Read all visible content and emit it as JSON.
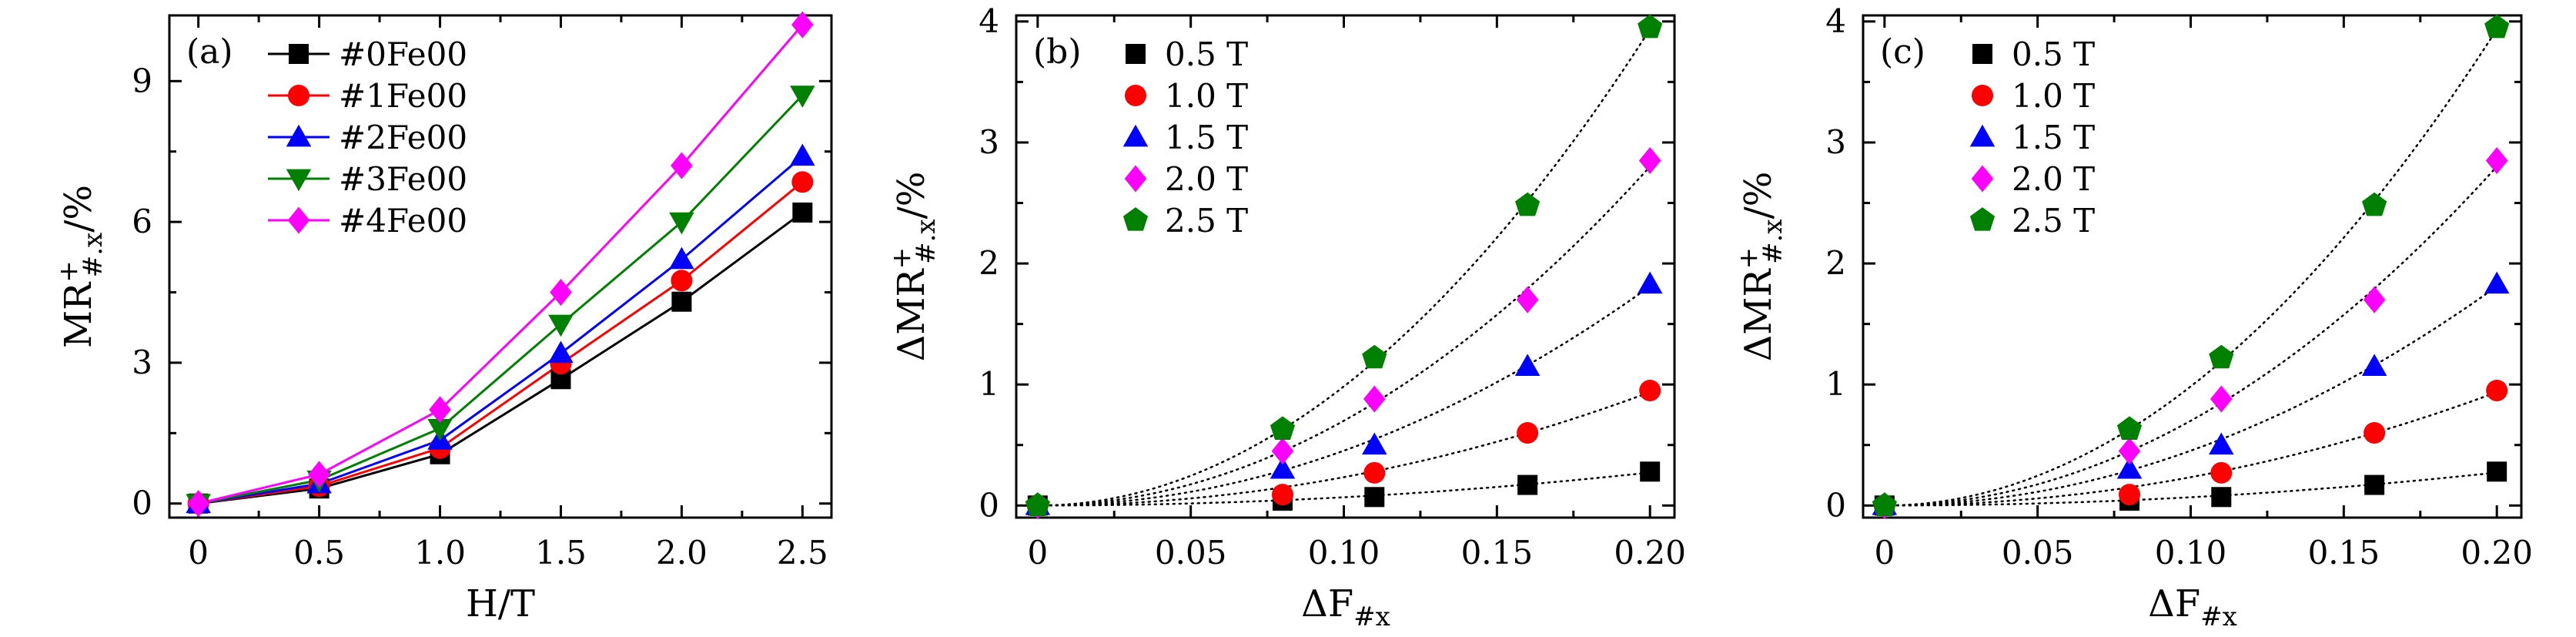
{
  "figure": {
    "panels": [
      "(a)",
      "(b)",
      "(c)"
    ]
  },
  "chart_data": [
    {
      "type": "line",
      "panel_label": "(a)",
      "x": [
        0,
        0.5,
        1.0,
        1.5,
        2.0,
        2.5
      ],
      "series": [
        {
          "name": "#0Fe00",
          "color": "#000000",
          "marker": "square",
          "values": [
            0,
            0.32,
            1.05,
            2.65,
            4.3,
            6.2
          ]
        },
        {
          "name": "#1Fe00",
          "color": "#ff0000",
          "marker": "circle",
          "values": [
            0,
            0.37,
            1.18,
            2.98,
            4.75,
            6.85
          ]
        },
        {
          "name": "#2Fe00",
          "color": "#0000ff",
          "marker": "triangle-up",
          "values": [
            0,
            0.42,
            1.35,
            3.2,
            5.2,
            7.4
          ]
        },
        {
          "name": "#3Fe00",
          "color": "#008000",
          "marker": "triangle-down",
          "values": [
            0,
            0.5,
            1.6,
            3.82,
            6.0,
            8.7
          ]
        },
        {
          "name": "#4Fe00",
          "color": "#ff00ff",
          "marker": "diamond",
          "values": [
            0,
            0.62,
            2.0,
            4.5,
            7.2,
            10.2
          ]
        }
      ],
      "xlabel": "H/T",
      "ylabel": "MR+#.x/%",
      "xticks": [
        0,
        0.5,
        1.0,
        1.5,
        2.0,
        2.5
      ],
      "xtick_labels": [
        "0",
        "0.5",
        "1.0",
        "1.5",
        "2.0",
        "2.5"
      ],
      "yticks": [
        0,
        3,
        6,
        9
      ],
      "ytick_labels": [
        "0",
        "3",
        "6",
        "9"
      ],
      "xlim": [
        -0.12,
        2.62
      ],
      "ylim": [
        -0.3,
        10.4
      ],
      "legend_position": "top-left"
    },
    {
      "type": "scatter",
      "panel_label": "(b)",
      "x": [
        0,
        0.08,
        0.11,
        0.16,
        0.2
      ],
      "series": [
        {
          "name": "0.5 T",
          "color": "#000000",
          "marker": "square",
          "values": [
            0,
            0.04,
            0.07,
            0.17,
            0.28
          ]
        },
        {
          "name": "1.0 T",
          "color": "#ff0000",
          "marker": "circle",
          "values": [
            0,
            0.09,
            0.27,
            0.6,
            0.95
          ]
        },
        {
          "name": "1.5 T",
          "color": "#0000ff",
          "marker": "triangle-up",
          "values": [
            0,
            0.3,
            0.5,
            1.15,
            1.83
          ]
        },
        {
          "name": "2.0 T",
          "color": "#ff00ff",
          "marker": "diamond",
          "values": [
            0,
            0.45,
            0.88,
            1.7,
            2.85
          ]
        },
        {
          "name": "2.5 T",
          "color": "#008000",
          "marker": "pentagon",
          "values": [
            0,
            0.63,
            1.22,
            2.48,
            3.95
          ]
        }
      ],
      "fit_curves": "dotted",
      "xlabel": "ΔF#x",
      "ylabel": "ΔMR+#.x/%",
      "xticks": [
        0,
        0.05,
        0.1,
        0.15,
        0.2
      ],
      "xtick_labels": [
        "0",
        "0.05",
        "0.10",
        "0.15",
        "0.20"
      ],
      "yticks": [
        0,
        1,
        2,
        3,
        4
      ],
      "ytick_labels": [
        "0",
        "1",
        "2",
        "3",
        "4"
      ],
      "xlim": [
        -0.007,
        0.208
      ],
      "ylim": [
        -0.1,
        4.05
      ],
      "legend_position": "top-left"
    },
    {
      "type": "scatter",
      "panel_label": "(c)",
      "x": [
        0,
        0.08,
        0.11,
        0.16,
        0.2
      ],
      "series": [
        {
          "name": "0.5 T",
          "color": "#000000",
          "marker": "square",
          "values": [
            0,
            0.04,
            0.07,
            0.17,
            0.28
          ]
        },
        {
          "name": "1.0 T",
          "color": "#ff0000",
          "marker": "circle",
          "values": [
            0,
            0.09,
            0.27,
            0.6,
            0.95
          ]
        },
        {
          "name": "1.5 T",
          "color": "#0000ff",
          "marker": "triangle-up",
          "values": [
            0,
            0.3,
            0.5,
            1.15,
            1.83
          ]
        },
        {
          "name": "2.0 T",
          "color": "#ff00ff",
          "marker": "diamond",
          "values": [
            0,
            0.45,
            0.88,
            1.7,
            2.85
          ]
        },
        {
          "name": "2.5 T",
          "color": "#008000",
          "marker": "pentagon",
          "values": [
            0,
            0.63,
            1.22,
            2.48,
            3.95
          ]
        }
      ],
      "fit_curves": "dotted",
      "xlabel": "ΔF#x",
      "ylabel": "ΔMR+#.x/%",
      "xticks": [
        0,
        0.05,
        0.1,
        0.15,
        0.2
      ],
      "xtick_labels": [
        "0",
        "0.05",
        "0.10",
        "0.15",
        "0.20"
      ],
      "yticks": [
        0,
        1,
        2,
        3,
        4
      ],
      "ytick_labels": [
        "0",
        "1",
        "2",
        "3",
        "4"
      ],
      "xlim": [
        -0.007,
        0.208
      ],
      "ylim": [
        -0.1,
        4.05
      ],
      "legend_position": "top-left"
    }
  ]
}
